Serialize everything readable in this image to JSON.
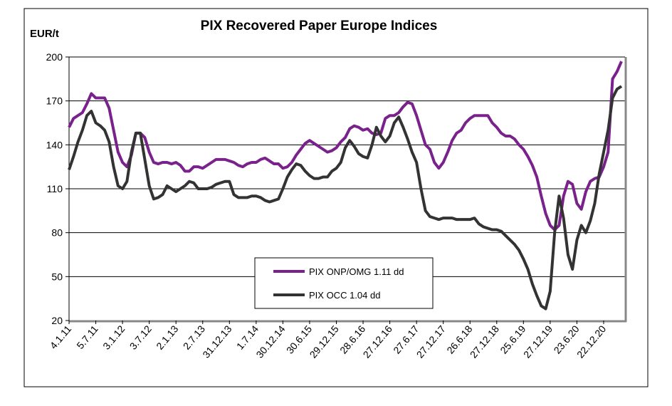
{
  "chart_data": {
    "type": "line",
    "title": "PIX Recovered Paper Europe Indices",
    "y_label": "EUR/t",
    "categories": [
      "4.1.11",
      null,
      null,
      null,
      null,
      null,
      "5.7.11",
      null,
      null,
      null,
      null,
      null,
      "3.1.12",
      null,
      null,
      null,
      null,
      null,
      "3.7.12",
      null,
      null,
      null,
      null,
      null,
      "2.1.13",
      null,
      null,
      null,
      null,
      null,
      "2.7.13",
      null,
      null,
      null,
      null,
      null,
      "31.12.13",
      null,
      null,
      null,
      null,
      null,
      "1.7.14",
      null,
      null,
      null,
      null,
      null,
      "30.12.14",
      null,
      null,
      null,
      null,
      null,
      "30.6.15",
      null,
      null,
      null,
      null,
      null,
      "29.12.15",
      null,
      null,
      null,
      null,
      null,
      "28.6.16",
      null,
      null,
      null,
      null,
      null,
      "27.12.16",
      null,
      null,
      null,
      null,
      null,
      "27.6.17",
      null,
      null,
      null,
      null,
      null,
      "27.12.17",
      null,
      null,
      null,
      null,
      null,
      "26.6.18",
      null,
      null,
      null,
      null,
      null,
      "27.12.18",
      null,
      null,
      null,
      null,
      null,
      "25.6.19",
      null,
      null,
      null,
      null,
      null,
      "27.12.19",
      null,
      null,
      null,
      null,
      null,
      "23.6.20",
      null,
      null,
      null,
      null,
      null,
      "22.12.20",
      null,
      null,
      null,
      null
    ],
    "series": [
      {
        "name": "PIX ONP/OMG 1.11 dd",
        "color": "#7a228c",
        "values": [
          152,
          158,
          160,
          162,
          168,
          175,
          172,
          172,
          172,
          165,
          150,
          135,
          128,
          125,
          133,
          148,
          148,
          145,
          135,
          128,
          127,
          128,
          128,
          127,
          128,
          126,
          122,
          122,
          125,
          125,
          124,
          126,
          128,
          130,
          130,
          130,
          129,
          128,
          126,
          125,
          127,
          128,
          128,
          130,
          131,
          129,
          127,
          127,
          124,
          125,
          128,
          133,
          137,
          141,
          143,
          141,
          139,
          137,
          135,
          136,
          138,
          142,
          145,
          151,
          153,
          152,
          150,
          151,
          148,
          147,
          148,
          158,
          160,
          160,
          162,
          166,
          169,
          168,
          160,
          150,
          140,
          137,
          128,
          124,
          128,
          135,
          143,
          148,
          150,
          155,
          158,
          160,
          160,
          160,
          160,
          155,
          152,
          148,
          146,
          146,
          144,
          140,
          137,
          132,
          126,
          118,
          105,
          93,
          85,
          82,
          85,
          105,
          115,
          113,
          100,
          96,
          108,
          115,
          117,
          118,
          125,
          135,
          185,
          190,
          197
        ]
      },
      {
        "name": "PIX OCC 1.04 dd",
        "color": "#333333",
        "values": [
          123,
          132,
          142,
          150,
          160,
          163,
          155,
          153,
          150,
          142,
          125,
          112,
          110,
          115,
          135,
          148,
          148,
          130,
          112,
          103,
          104,
          106,
          112,
          110,
          108,
          110,
          112,
          115,
          114,
          110,
          110,
          110,
          111,
          113,
          114,
          115,
          115,
          106,
          104,
          104,
          104,
          105,
          105,
          104,
          102,
          101,
          102,
          103,
          110,
          118,
          123,
          127,
          126,
          122,
          119,
          117,
          117,
          118,
          118,
          122,
          124,
          128,
          138,
          143,
          139,
          134,
          132,
          131,
          140,
          152,
          146,
          142,
          146,
          155,
          159,
          152,
          144,
          135,
          128,
          110,
          95,
          91,
          90,
          89,
          90,
          90,
          90,
          89,
          89,
          89,
          89,
          90,
          86,
          84,
          83,
          82,
          82,
          81,
          78,
          75,
          72,
          68,
          62,
          55,
          45,
          37,
          30,
          28,
          40,
          80,
          105,
          90,
          65,
          55,
          75,
          85,
          80,
          88,
          100,
          120,
          135,
          150,
          172,
          178,
          180
        ]
      }
    ],
    "ylim": [
      20,
      200
    ],
    "yticks": [
      20,
      50,
      80,
      110,
      140,
      170,
      200
    ],
    "grid": true
  }
}
